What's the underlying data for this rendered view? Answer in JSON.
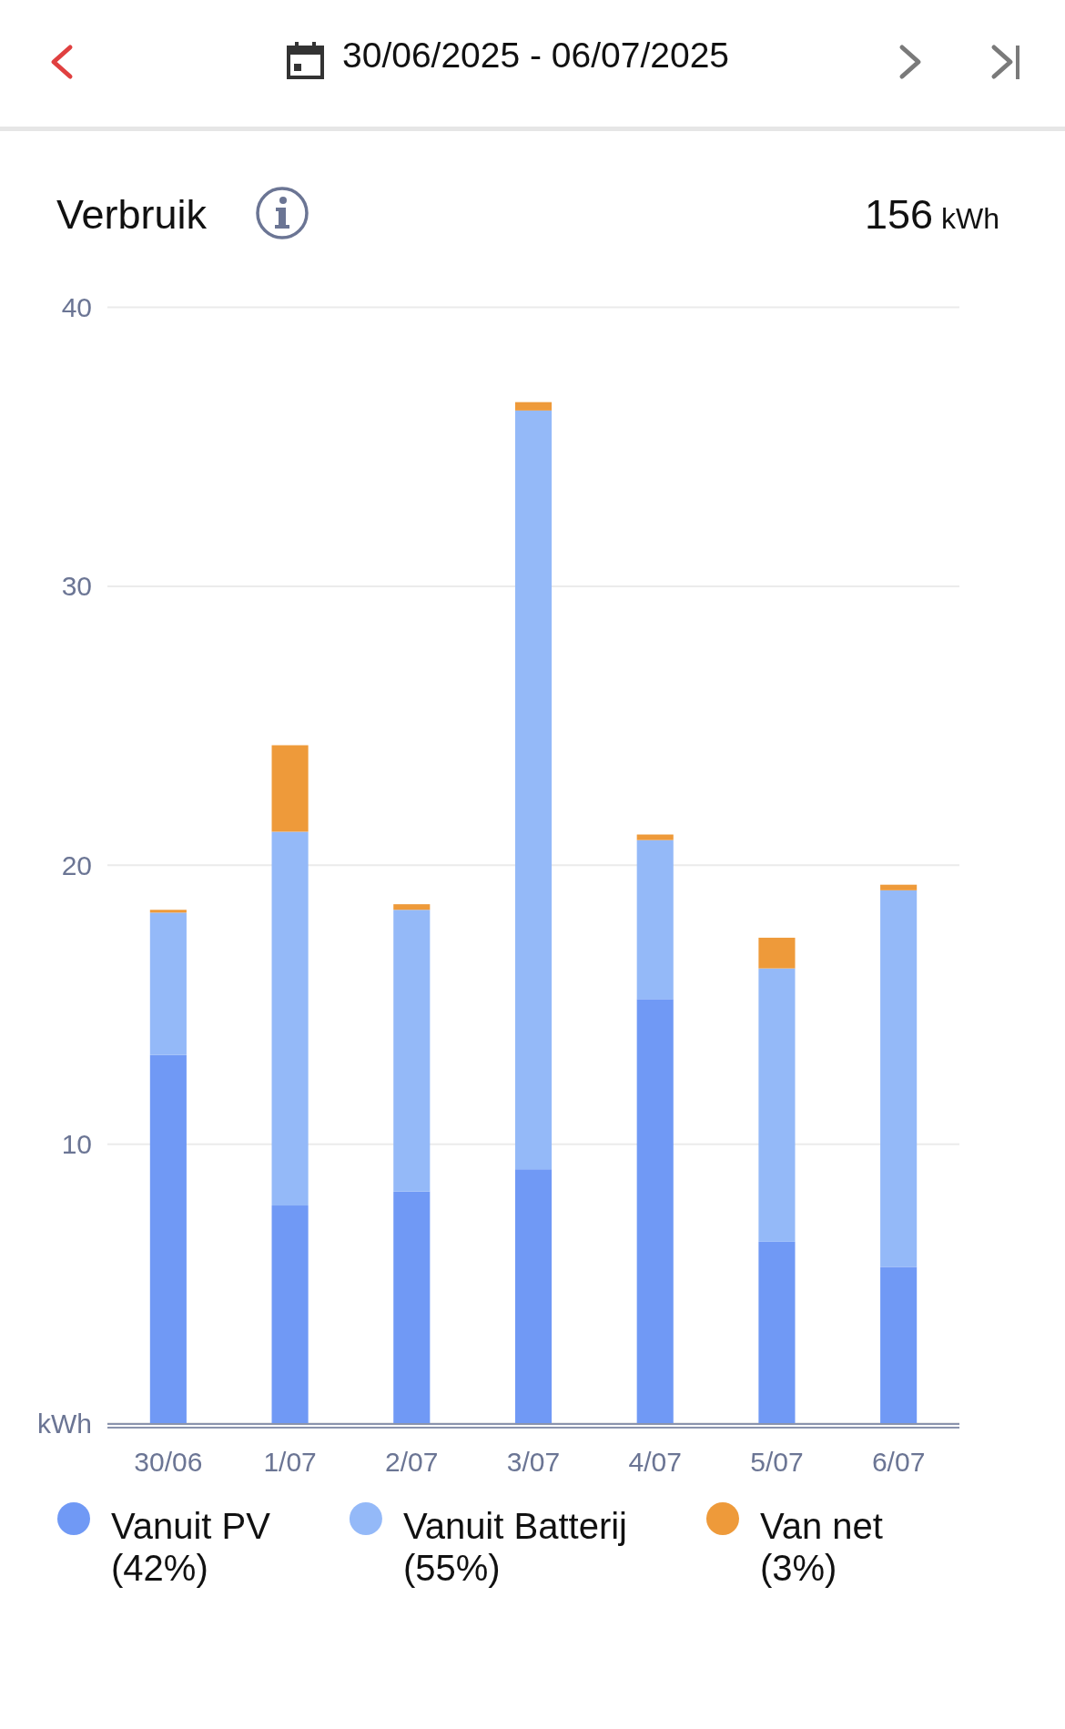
{
  "chart_data": {
    "type": "bar",
    "title": "Verbruik",
    "annotations": [
      "30/06/2025 - 06/07/2025",
      "156 kWh"
    ],
    "categories": [
      "30/06",
      "1/07",
      "2/07",
      "3/07",
      "4/07",
      "5/07",
      "6/07"
    ],
    "series": [
      {
        "name": "Vanuit PV (42%)",
        "color": "#7099f5",
        "values": [
          13.2,
          7.8,
          8.3,
          9.1,
          15.2,
          6.5,
          5.6
        ]
      },
      {
        "name": "Vanuit Batterij (55%)",
        "color": "#94b9f8",
        "values": [
          5.1,
          13.4,
          10.1,
          27.2,
          5.7,
          9.8,
          13.5
        ]
      },
      {
        "name": "Van net (3%)",
        "color": "#ee9a3a",
        "values": [
          0.1,
          3.1,
          0.2,
          0.3,
          0.2,
          1.1,
          0.2
        ]
      }
    ],
    "stacked": true,
    "ylim": [
      0,
      40
    ],
    "yticks": [
      {
        "value": 0,
        "label": "kWh"
      },
      10,
      20,
      30,
      40
    ],
    "grid": "y",
    "legend": "bottom"
  }
}
